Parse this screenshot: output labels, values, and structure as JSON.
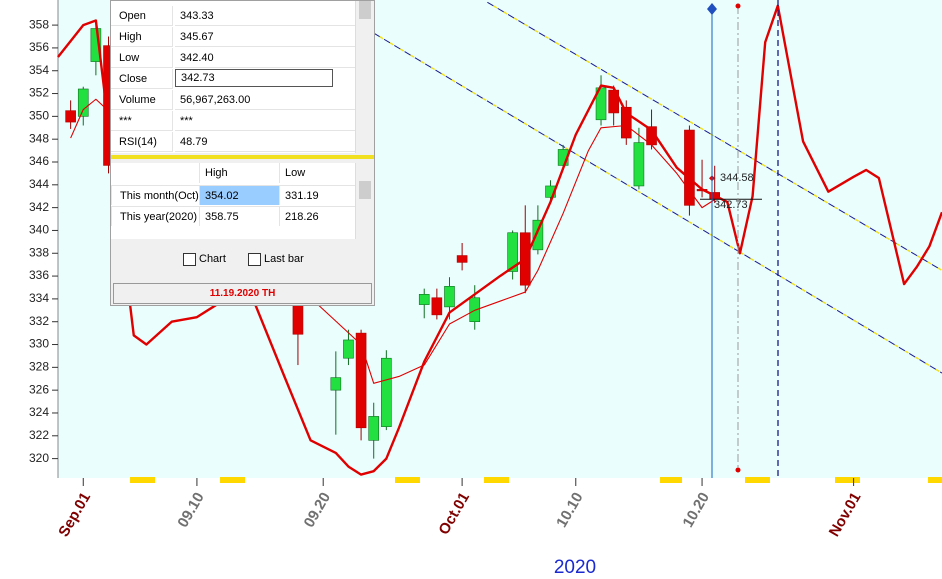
{
  "chart_data": {
    "type": "candlestick",
    "xlabel": "2020",
    "xlim": [
      "2020-08-30",
      "2020-11-08"
    ],
    "ylim": [
      318.3,
      360.2
    ],
    "yticks": [
      320,
      322,
      324,
      326,
      328,
      330,
      332,
      334,
      336,
      338,
      340,
      342,
      344,
      346,
      348,
      350,
      352,
      354,
      356,
      358
    ],
    "xticks": [
      {
        "value": "2020-09-01",
        "label": "Sep.01",
        "color": "#800000"
      },
      {
        "value": "2020-09-10",
        "label": "09.10",
        "color": "#707070"
      },
      {
        "value": "2020-09-20",
        "label": "09.20",
        "color": "#707070"
      },
      {
        "value": "2020-10-01",
        "label": "Oct.01",
        "color": "#800000"
      },
      {
        "value": "2020-10-10",
        "label": "10.10",
        "color": "#707070"
      },
      {
        "value": "2020-10-20",
        "label": "10.20",
        "color": "#707070"
      },
      {
        "value": "2020-11-01",
        "label": "Nov.01",
        "color": "#800000"
      }
    ],
    "up_color": "#22e040",
    "down_color": "#e00000",
    "dates": [
      "2020-08-31",
      "2020-09-01",
      "2020-09-02",
      "2020-09-03",
      "2020-09-18",
      "2020-09-21",
      "2020-09-22",
      "2020-09-23",
      "2020-09-24",
      "2020-09-25",
      "2020-09-28",
      "2020-09-29",
      "2020-09-30",
      "2020-10-01",
      "2020-10-02",
      "2020-10-05",
      "2020-10-06",
      "2020-10-07",
      "2020-10-08",
      "2020-10-09",
      "2020-10-12",
      "2020-10-13",
      "2020-10-14",
      "2020-10-15",
      "2020-10-16",
      "2020-10-19",
      "2020-10-20",
      "2020-10-21"
    ],
    "open": [
      350.5,
      350.0,
      354.8,
      356.2,
      333.5,
      326.0,
      328.8,
      331.0,
      321.6,
      322.8,
      333.5,
      334.1,
      333.3,
      337.8,
      332.0,
      336.4,
      339.8,
      338.3,
      342.9,
      345.7,
      349.7,
      352.3,
      350.8,
      343.9,
      349.1,
      348.8,
      343.6,
      343.33
    ],
    "high": [
      351.4,
      352.6,
      358.4,
      357.0,
      334.2,
      329.4,
      331.3,
      331.3,
      324.9,
      329.5,
      334.9,
      334.9,
      335.9,
      338.9,
      335.2,
      340.0,
      342.2,
      342.2,
      344.4,
      347.5,
      353.6,
      352.7,
      351.4,
      349.0,
      350.6,
      349.2,
      346.2,
      345.67
    ],
    "low": [
      348.9,
      349.2,
      353.6,
      345.0,
      328.2,
      322.1,
      328.2,
      321.6,
      320.0,
      322.5,
      332.3,
      332.2,
      332.2,
      336.5,
      331.3,
      335.7,
      334.5,
      337.9,
      342.6,
      345.3,
      349.2,
      349.2,
      347.5,
      343.6,
      347.1,
      341.3,
      342.9,
      342.4
    ],
    "close": [
      349.5,
      352.4,
      357.7,
      345.7,
      330.9,
      327.1,
      330.4,
      322.7,
      323.7,
      328.8,
      334.4,
      332.6,
      335.1,
      337.2,
      334.1,
      339.8,
      335.2,
      340.9,
      343.9,
      347.1,
      352.5,
      350.3,
      348.1,
      347.7,
      347.5,
      342.2,
      343.5,
      342.73
    ],
    "lines": [
      {
        "color": "#e00000",
        "x": [
          "2020-08-30",
          "2020-09-01",
          "2020-09-02",
          "2020-09-05",
          "2020-09-06",
          "2020-09-08",
          "2020-09-10",
          "2020-09-12",
          "2020-09-14",
          "2020-09-17",
          "2020-09-19",
          "2020-09-21",
          "2020-09-22",
          "2020-09-23",
          "2020-09-24",
          "2020-09-25",
          "2020-09-26",
          "2020-09-28",
          "2020-09-30",
          "2020-10-02",
          "2020-10-04",
          "2020-10-06",
          "2020-10-08",
          "2020-10-10",
          "2020-10-12",
          "2020-10-13",
          "2020-10-14",
          "2020-10-16",
          "2020-10-18",
          "2020-10-20",
          "2020-10-22",
          "2020-10-23",
          "2020-10-24",
          "2020-10-25",
          "2020-10-26",
          "2020-10-28",
          "2020-10-30",
          "2020-11-01",
          "2020-11-02",
          "2020-11-03",
          "2020-11-05",
          "2020-11-06",
          "2020-11-07",
          "2020-11-08"
        ],
        "values": [
          355.2,
          358.0,
          358.4,
          330.8,
          330.0,
          332.0,
          332.4,
          333.8,
          335.2,
          327.0,
          321.6,
          320.5,
          319.3,
          318.6,
          318.9,
          320.0,
          322.7,
          328.5,
          332.8,
          334.4,
          336.0,
          337.5,
          342.5,
          348.4,
          352.7,
          352.5,
          350.3,
          348.8,
          345.5,
          343.6,
          342.5,
          338.0,
          343.0,
          356.5,
          359.7,
          347.8,
          343.4,
          344.7,
          345.3,
          344.6,
          335.3,
          336.8,
          338.6,
          341.6
        ]
      },
      {
        "color": "#e00000",
        "x": [
          "2020-08-31",
          "2020-09-01",
          "2020-09-02",
          "2020-09-23",
          "2020-09-24",
          "2020-09-26",
          "2020-09-28",
          "2020-09-30",
          "2020-10-02",
          "2020-10-04",
          "2020-10-06",
          "2020-10-07",
          "2020-10-08",
          "2020-10-09",
          "2020-10-11",
          "2020-10-12",
          "2020-10-14",
          "2020-10-16",
          "2020-10-18",
          "2020-10-20",
          "2020-10-21"
        ],
        "values": [
          348.1,
          350.6,
          351.5,
          330.0,
          326.6,
          327.2,
          328.2,
          331.8,
          333.0,
          333.8,
          334.6,
          336.5,
          339.0,
          341.5,
          347.0,
          349.0,
          349.2,
          347.5,
          345.0,
          342.0,
          342.7
        ]
      }
    ],
    "trendlines": [
      {
        "x": [
          "2020-10-03",
          "2020-11-08"
        ],
        "values": [
          360.0,
          336.5
        ]
      },
      {
        "x": [
          "2020-09-24",
          "2020-11-08"
        ],
        "values": [
          357.3,
          327.5
        ]
      }
    ],
    "price_labels": [
      344.58,
      342.73
    ]
  },
  "info_panel": {
    "rows": [
      [
        "Open",
        "343.33"
      ],
      [
        "High",
        "345.67"
      ],
      [
        "Low",
        "342.40"
      ],
      [
        "Close",
        "342.73"
      ],
      [
        "Volume",
        "56,967,263.00"
      ],
      [
        "***",
        "***"
      ],
      [
        "RSI(14)",
        "48.79"
      ]
    ],
    "range_header": [
      "High",
      "Low"
    ],
    "range_rows": [
      [
        "This month(Oct)",
        "354.02",
        "331.19"
      ],
      [
        "This year(2020)",
        "358.75",
        "218.26"
      ]
    ],
    "checkboxes": [
      "Chart",
      "Last bar"
    ],
    "date_bar": "11.19.2020 TH"
  }
}
